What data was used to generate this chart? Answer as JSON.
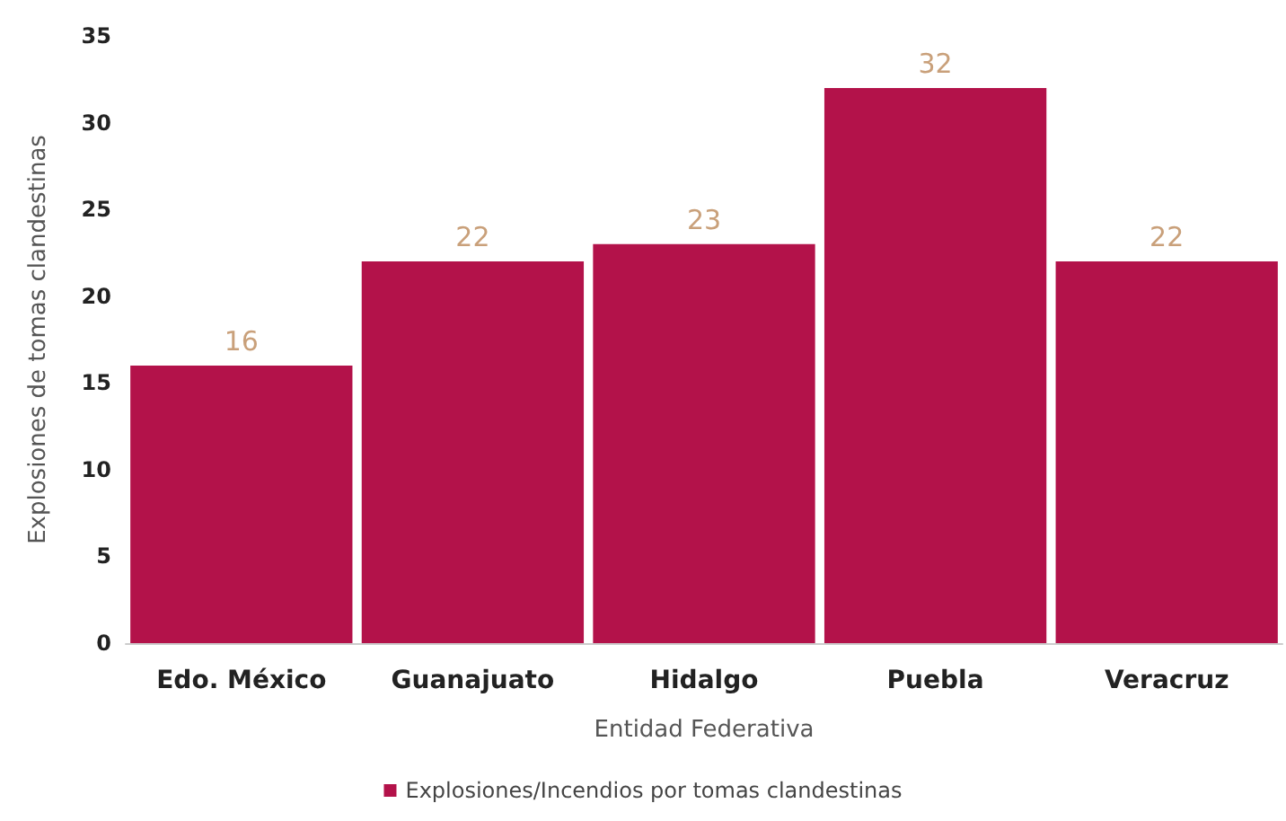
{
  "chart_data": {
    "type": "bar",
    "xlabel": "Entidad Federativa",
    "ylabel": "Explosiones de tomas clandestinas",
    "categories": [
      "Edo. México",
      "Guanajuato",
      "Hidalgo",
      "Puebla",
      "Veracruz"
    ],
    "series": [
      {
        "name": "Explosiones/Incendios por tomas clandestinas",
        "color": "#b3124a",
        "values": [
          16,
          22,
          23,
          32,
          22
        ]
      }
    ],
    "ylim": [
      0,
      35
    ],
    "yticks": [
      0,
      5,
      10,
      15,
      20,
      25,
      30,
      35
    ],
    "grid": false,
    "legend": "bottom",
    "data_labels": true
  }
}
